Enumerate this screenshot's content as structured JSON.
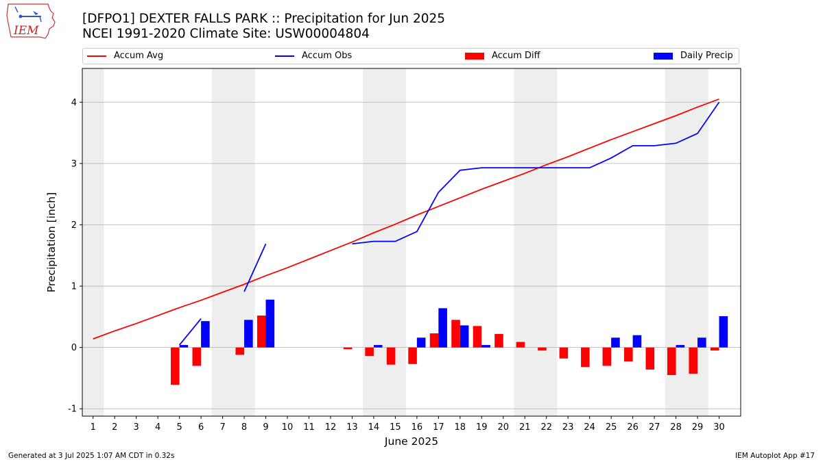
{
  "header": {
    "title": "[DFPO1] DEXTER FALLS PARK :: Precipitation for Jun 2025",
    "subtitle": "NCEI 1991-2020 Climate Site: USW00004804"
  },
  "logo": {
    "text": "IEM",
    "icon": "iowa-state-outline-logo"
  },
  "footer": {
    "left": "Generated at 3 Jul 2025 1:07 AM CDT in 0.32s",
    "right": "IEM Autoplot App #17"
  },
  "colors": {
    "avg": "#ff0000",
    "obs": "#0000ff",
    "diff": "#ff0000",
    "daily": "#0000ff",
    "weekend": "#eeeeee",
    "grid": "#b0b0b0"
  },
  "chart_data": {
    "type": "bar",
    "xlabel": "June 2025",
    "ylabel": "Precipitation [inch]",
    "ylim": [
      -1.12,
      4.55
    ],
    "xlim": [
      0.5,
      31.0
    ],
    "yticks": [
      -1,
      0,
      1,
      2,
      3,
      4
    ],
    "grid": "horizontal",
    "legend_position": "top",
    "x": [
      1,
      2,
      3,
      4,
      5,
      6,
      7,
      8,
      9,
      10,
      11,
      12,
      13,
      14,
      15,
      16,
      17,
      18,
      19,
      20,
      21,
      22,
      23,
      24,
      25,
      26,
      27,
      28,
      29,
      30
    ],
    "weekend_bands": [
      [
        0.5,
        1.5
      ],
      [
        6.5,
        8.5
      ],
      [
        13.5,
        15.5
      ],
      [
        20.5,
        22.5
      ],
      [
        27.5,
        29.5
      ]
    ],
    "series": [
      {
        "name": "Accum Avg",
        "kind": "line",
        "values": [
          0.14,
          0.27,
          0.39,
          0.52,
          0.65,
          0.77,
          0.9,
          1.03,
          1.17,
          1.3,
          1.44,
          1.58,
          1.72,
          1.87,
          2.01,
          2.16,
          2.3,
          2.44,
          2.58,
          2.71,
          2.84,
          2.98,
          3.11,
          3.25,
          3.39,
          3.52,
          3.65,
          3.78,
          3.92,
          4.05
        ]
      },
      {
        "name": "Accum Obs",
        "kind": "line",
        "values": [
          null,
          null,
          null,
          null,
          0.04,
          0.47,
          null,
          0.91,
          1.69,
          null,
          null,
          null,
          1.69,
          1.73,
          1.73,
          1.89,
          2.53,
          2.89,
          2.93,
          2.93,
          2.93,
          2.93,
          2.93,
          2.93,
          3.09,
          3.29,
          3.29,
          3.33,
          3.49,
          4.0
        ]
      },
      {
        "name": "Accum Diff",
        "kind": "bar",
        "values": [
          0,
          0,
          0,
          0,
          -0.61,
          -0.3,
          0,
          -0.12,
          0.52,
          0,
          0,
          0,
          -0.03,
          -0.14,
          -0.28,
          -0.27,
          0.23,
          0.45,
          0.35,
          0.22,
          0.09,
          -0.05,
          -0.18,
          -0.32,
          -0.3,
          -0.23,
          -0.36,
          -0.45,
          -0.43,
          -0.05
        ]
      },
      {
        "name": "Daily Precip",
        "kind": "bar",
        "values": [
          0,
          0,
          0,
          0,
          0.04,
          0.43,
          0,
          0.45,
          0.78,
          0,
          0,
          0,
          0,
          0.04,
          0,
          0.16,
          0.64,
          0.36,
          0.04,
          0,
          0,
          0,
          0,
          0,
          0.16,
          0.2,
          0,
          0.04,
          0.16,
          0.51
        ]
      }
    ]
  }
}
